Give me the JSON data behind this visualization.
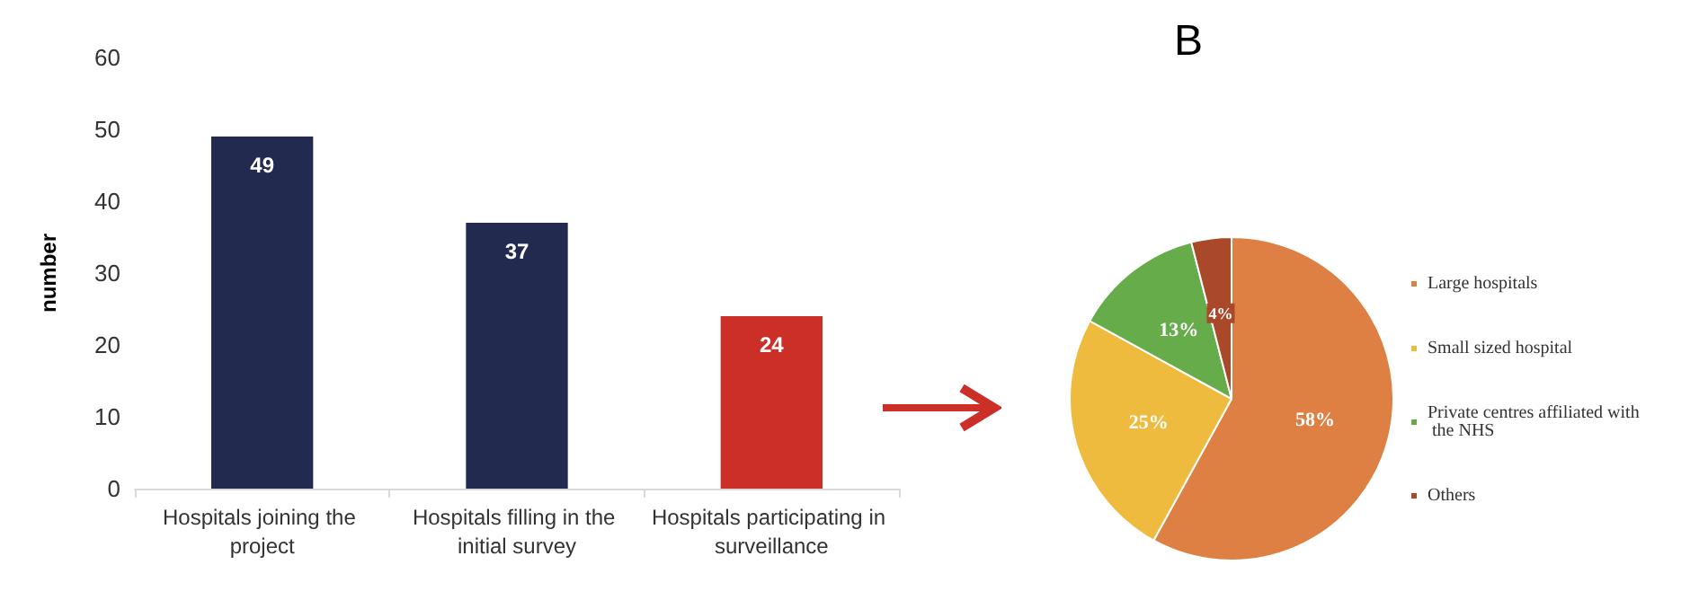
{
  "chart_data": [
    {
      "type": "bar",
      "ylabel": "number",
      "categories": [
        "Hospitals joining the project",
        "Hospitals filling in the initial survey",
        "Hospitals participating in surveillance"
      ],
      "values": [
        49,
        37,
        24
      ],
      "colors": [
        "#222a50",
        "#222a50",
        "#cc2e28"
      ],
      "ylim": [
        0,
        60
      ],
      "yticks": [
        0,
        10,
        20,
        30,
        40,
        50,
        60
      ],
      "grid": false,
      "data_labels": true
    },
    {
      "type": "pie",
      "title": "B",
      "categories": [
        "Large hospitals",
        "Small sized hospital",
        "Private centres affiliated with the NHS",
        "Others"
      ],
      "values": [
        58,
        25,
        13,
        4
      ],
      "colors": [
        "#de8043",
        "#efbb3e",
        "#67ac4b",
        "#a9492a"
      ],
      "value_labels": [
        "58%",
        "25%",
        "13%",
        "4%"
      ],
      "legend": "right"
    }
  ]
}
